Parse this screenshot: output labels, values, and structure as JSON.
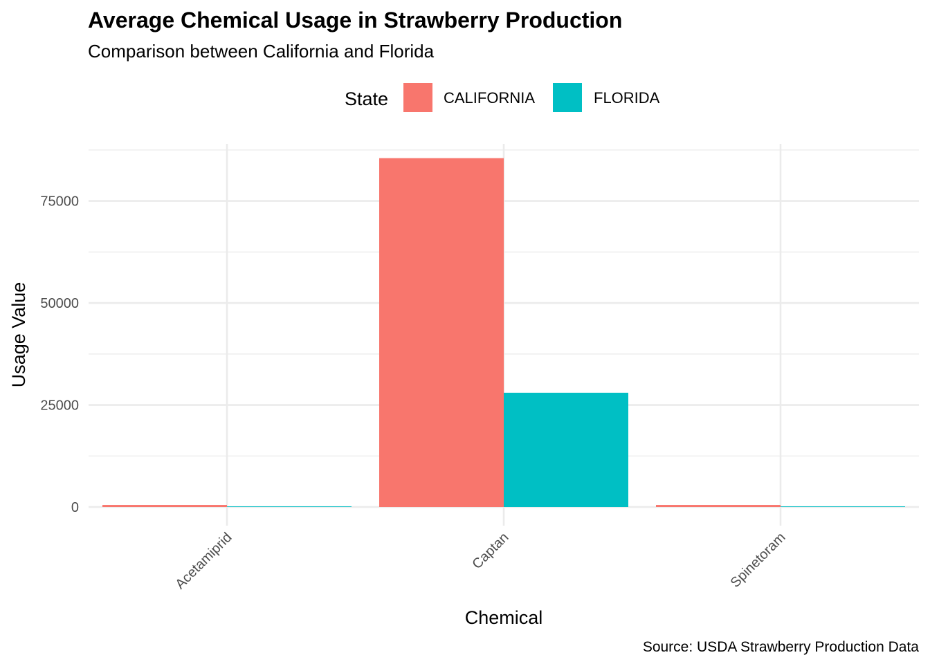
{
  "chart_data": {
    "type": "bar",
    "title": "Average Chemical Usage in Strawberry Production",
    "subtitle": "Comparison between California and Florida",
    "xlabel": "Chemical",
    "ylabel": "Usage Value",
    "caption": "Source: USDA Strawberry Production Data",
    "categories": [
      "Acetamiprid",
      "Captan",
      "Spinetoram"
    ],
    "legend": {
      "title": "State",
      "placement": "top"
    },
    "series": [
      {
        "name": "CALIFORNIA",
        "color": "#F8766D",
        "values": [
          500,
          85500,
          500
        ]
      },
      {
        "name": "FLORIDA",
        "color": "#00BFC4",
        "values": [
          150,
          28000,
          150
        ]
      }
    ],
    "ylim": [
      0,
      89000
    ],
    "yticks": [
      0,
      25000,
      50000,
      75000
    ],
    "yticklabels": [
      "0",
      "25000",
      "50000",
      "75000"
    ],
    "grid": true
  }
}
